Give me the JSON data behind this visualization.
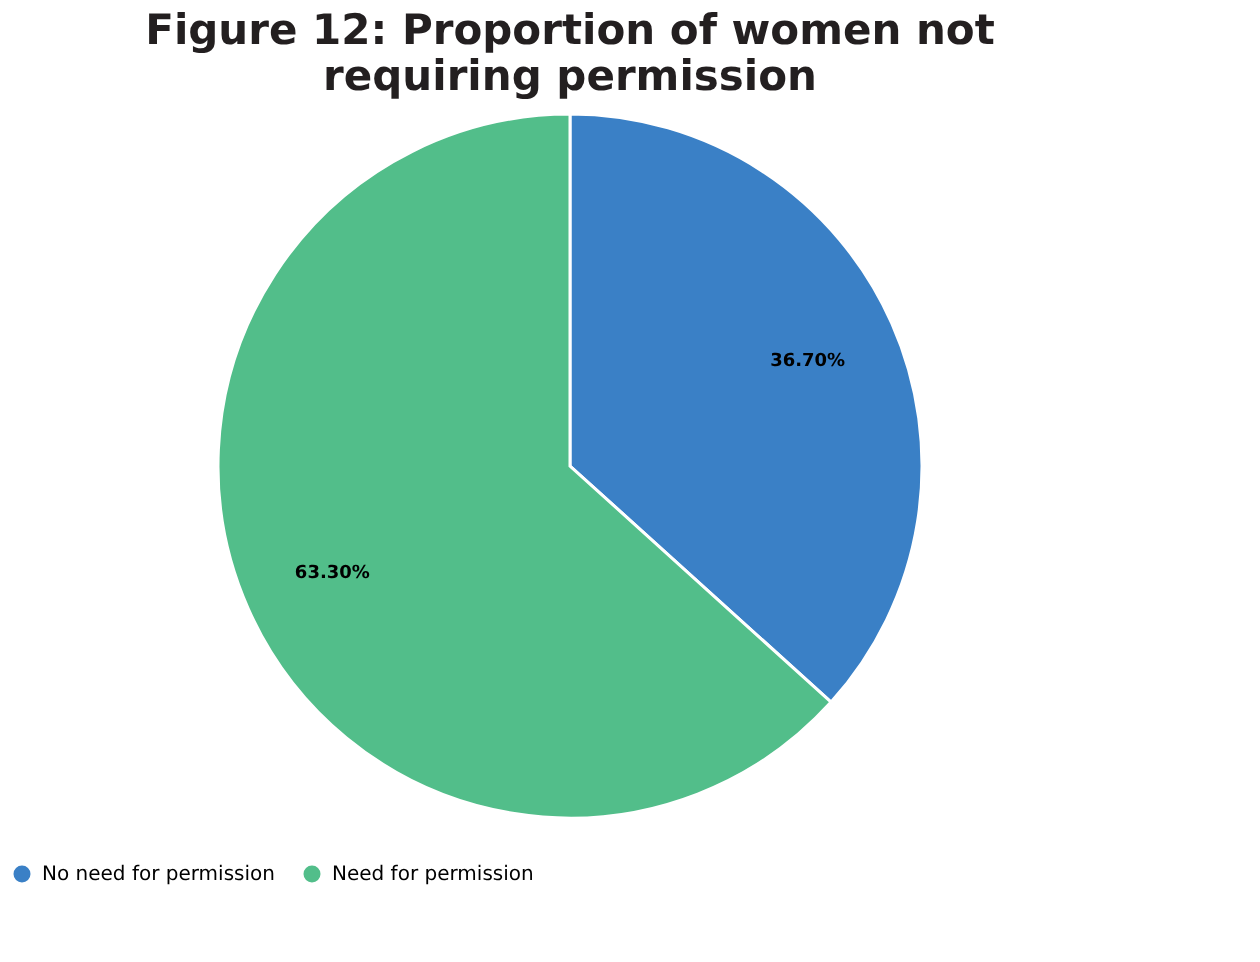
{
  "chart_data": {
    "type": "pie",
    "title": "Figure 12: Proportion of women not requiring permission",
    "categories": [
      "No need for permission",
      "Need for permission"
    ],
    "values": [
      36.7,
      63.3
    ],
    "colors": [
      "#3a80c6",
      "#52be8a"
    ],
    "value_labels": [
      "36.70%",
      "63.30%"
    ],
    "legend": "bottom"
  }
}
